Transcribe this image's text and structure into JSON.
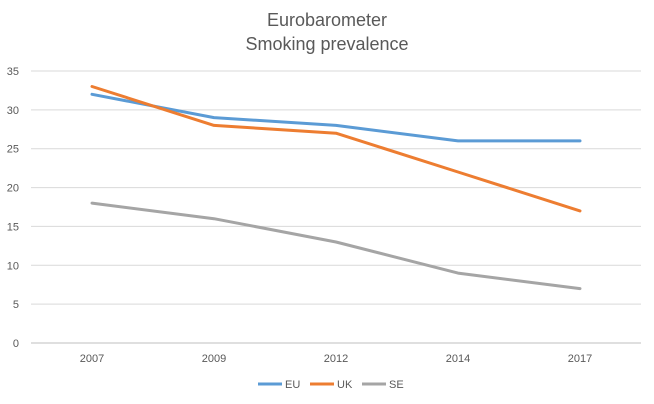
{
  "chart_data": {
    "type": "line",
    "title": [
      "Eurobarometer",
      "Smoking prevalence"
    ],
    "categories": [
      "2007",
      "2009",
      "2012",
      "2014",
      "2017"
    ],
    "series": [
      {
        "name": "EU",
        "values": [
          32,
          29,
          28,
          26,
          26
        ],
        "color": "#5B9BD5"
      },
      {
        "name": "UK",
        "values": [
          33,
          28,
          27,
          22,
          17
        ],
        "color": "#ED7D31"
      },
      {
        "name": "SE",
        "values": [
          18,
          16,
          13,
          9,
          7
        ],
        "color": "#A5A5A5"
      }
    ],
    "xlabel": "",
    "ylabel": "",
    "ylim": [
      0,
      35
    ],
    "yticks": [
      0,
      5,
      10,
      15,
      20,
      25,
      30,
      35
    ],
    "grid": true,
    "legend": "bottom"
  }
}
